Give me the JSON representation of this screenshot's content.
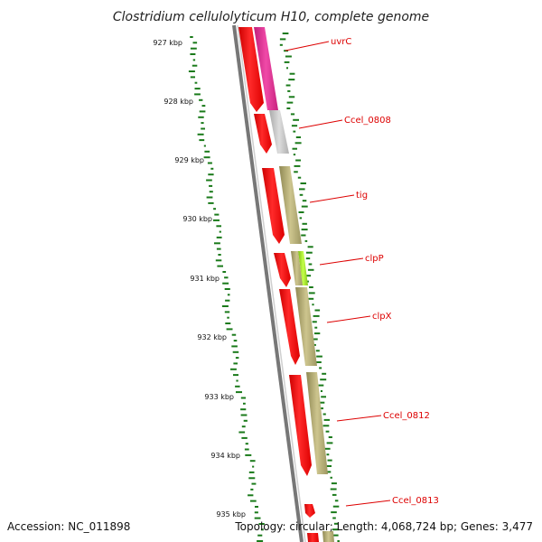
{
  "title": "Clostridium cellulolyticum H10, complete genome",
  "footer": {
    "accession": "Accession: NC_011898",
    "summary": "Topology: circular; Length: 4,068,724 bp; Genes: 3,477"
  },
  "kbp_labels": [
    "927 kbp",
    "928 kbp",
    "929 kbp",
    "930 kbp",
    "931 kbp",
    "932 kbp",
    "933 kbp",
    "934 kbp",
    "935 kbp"
  ],
  "genes": [
    {
      "name": "uvrC",
      "color": "#e8359a"
    },
    {
      "name": "Ccel_0808",
      "color": "#c8c8c8"
    },
    {
      "name": "tig",
      "color": "#bdb57a"
    },
    {
      "name": "clpP",
      "color": "#a6e62a"
    },
    {
      "name": "clpX",
      "color": "#bdb57a"
    },
    {
      "name": "Ccel_0812",
      "color": "#bdb57a"
    },
    {
      "name": "Ccel_0813",
      "color": "#bdb57a"
    }
  ],
  "colors": {
    "cds": "#ff0000",
    "label": "#dd0000",
    "gc_track": "#1a7a1a",
    "backbone": "#888888"
  }
}
